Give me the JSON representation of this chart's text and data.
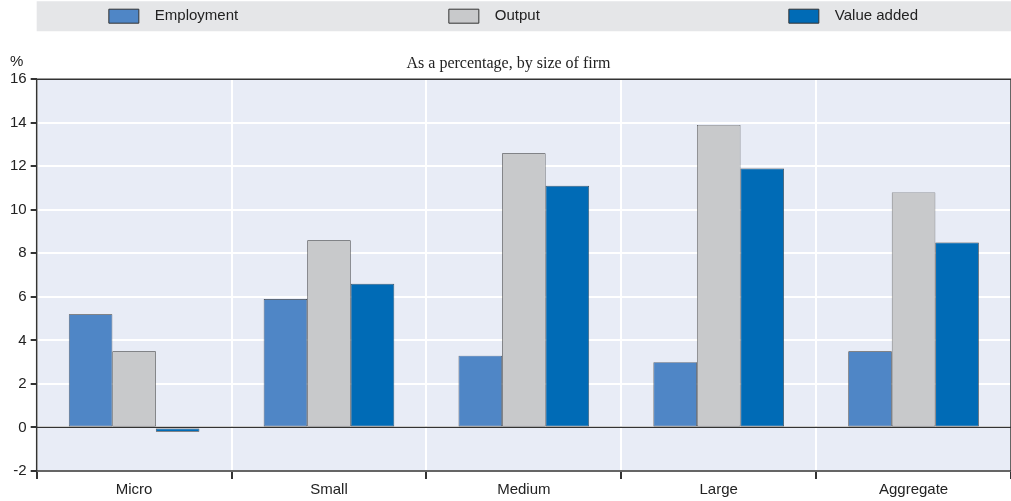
{
  "chart_data": {
    "type": "bar",
    "title": "As a percentage, by size of firm",
    "ylabel": "%",
    "categories": [
      "Micro",
      "Small",
      "Medium",
      "Large",
      "Aggregate"
    ],
    "series": [
      {
        "name": "Employment",
        "color": "#4f86c6",
        "values": [
          5.2,
          5.9,
          3.3,
          3.0,
          3.5
        ]
      },
      {
        "name": "Output",
        "color": "#c8c9cb",
        "values": [
          3.5,
          8.6,
          12.6,
          13.9,
          10.8
        ]
      },
      {
        "name": "Value added",
        "color": "#006bb6",
        "values": [
          -0.2,
          6.6,
          11.1,
          11.9,
          8.5
        ]
      }
    ],
    "ylim": [
      -2,
      16
    ],
    "yticks": [
      -2,
      0,
      2,
      4,
      6,
      8,
      10,
      12,
      14,
      16
    ],
    "grid": true,
    "legend": "top"
  }
}
